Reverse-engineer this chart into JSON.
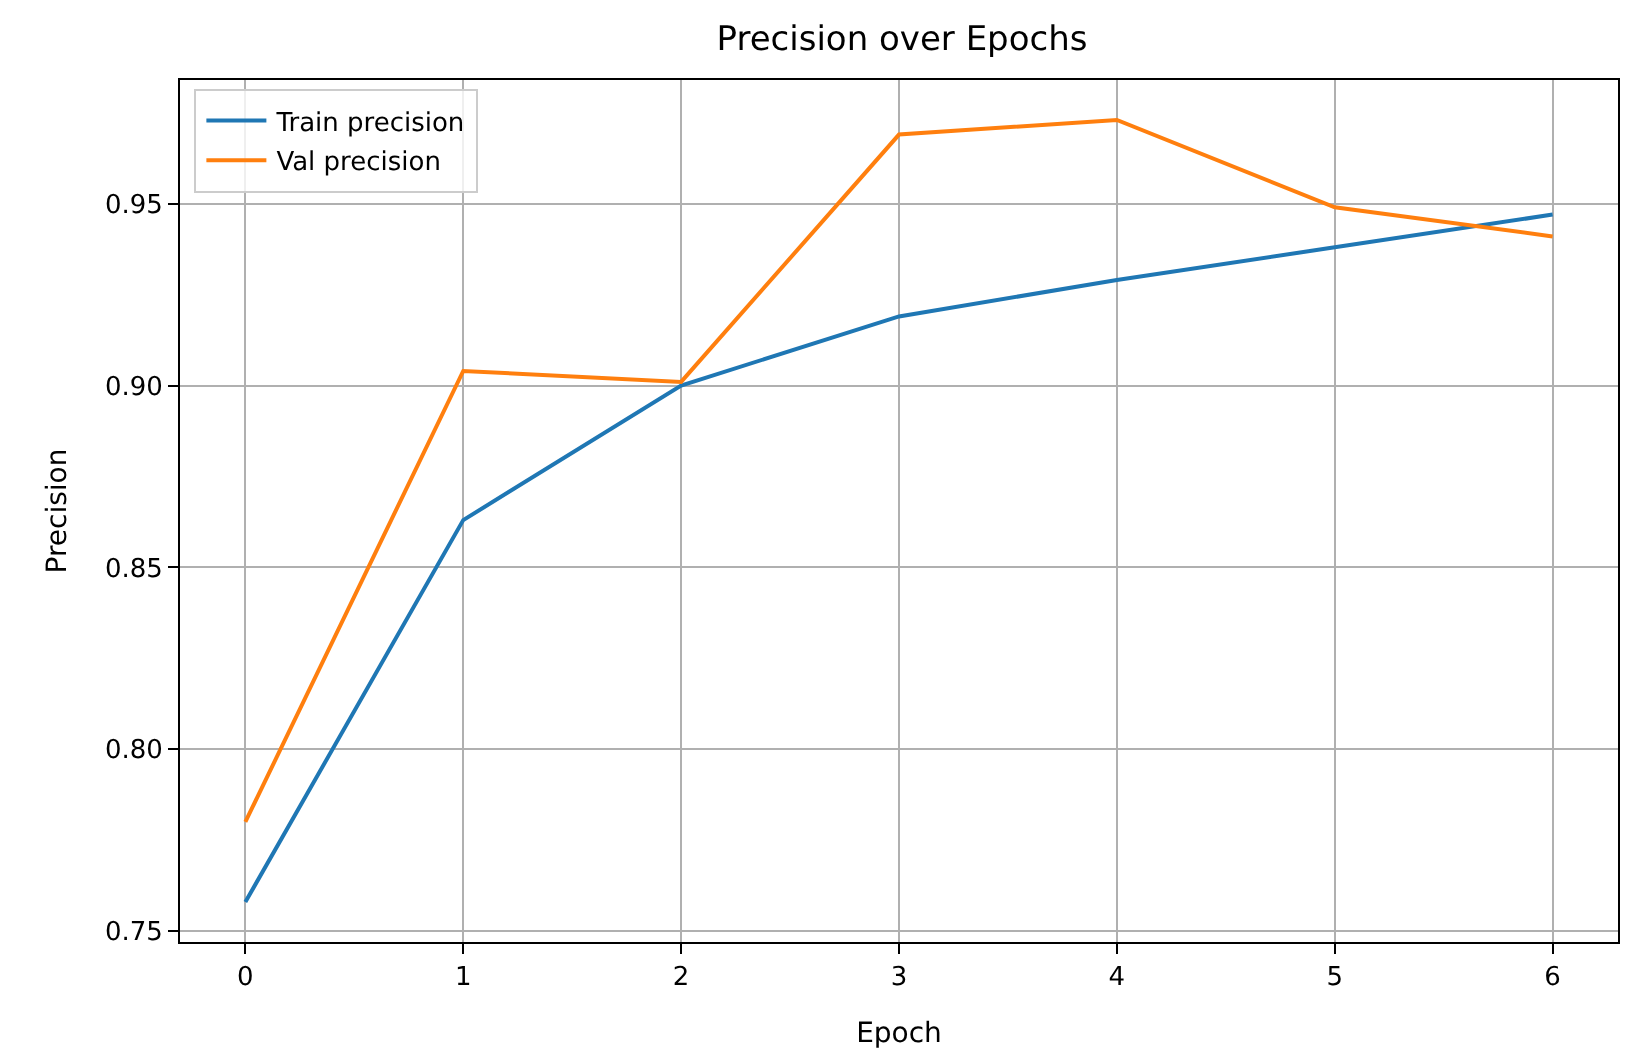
{
  "chart_data": {
    "type": "line",
    "title": "Precision over Epochs",
    "xlabel": "Epoch",
    "ylabel": "Precision",
    "x": [
      0,
      1,
      2,
      3,
      4,
      5,
      6
    ],
    "series": [
      {
        "name": "Train precision",
        "color": "#1f77b4",
        "values": [
          0.758,
          0.863,
          0.9,
          0.919,
          0.929,
          0.938,
          0.947
        ]
      },
      {
        "name": "Val precision",
        "color": "#ff7f0e",
        "values": [
          0.78,
          0.904,
          0.901,
          0.969,
          0.973,
          0.949,
          0.941
        ]
      }
    ],
    "xlim": [
      -0.3,
      6.3
    ],
    "xticks": [
      0,
      1,
      2,
      3,
      4,
      5,
      6
    ],
    "ylim": [
      0.747,
      0.984
    ],
    "yticks": [
      {
        "value": 0.75,
        "label": "0.75"
      },
      {
        "value": 0.8,
        "label": "0.80"
      },
      {
        "value": 0.85,
        "label": "0.85"
      },
      {
        "value": 0.9,
        "label": "0.90"
      },
      {
        "value": 0.95,
        "label": "0.95"
      }
    ],
    "grid": true,
    "legend": "top left",
    "marker": "none",
    "line_style": "solid"
  }
}
